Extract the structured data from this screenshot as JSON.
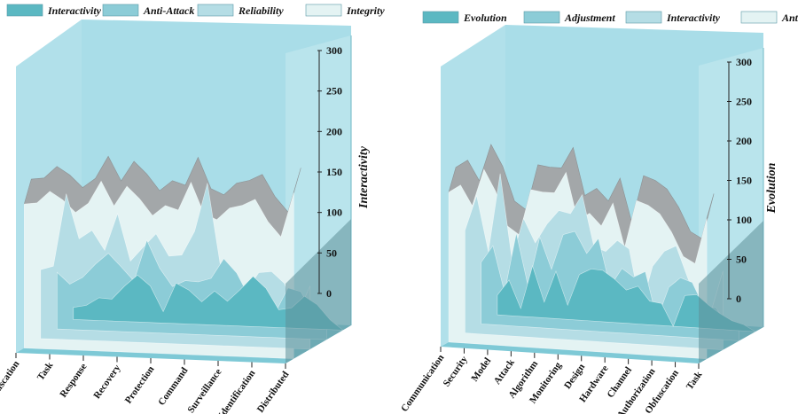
{
  "colors": {
    "wall": "#a9dde8",
    "wall_right": "#bfe6ee",
    "floor": "#7ec9d6",
    "series": [
      "#5bb8c2",
      "#8cccd7",
      "#b5dde5",
      "#e4f3f3"
    ],
    "top_band": "#a3a7a9"
  },
  "chart_data": [
    {
      "type": "area",
      "title": "",
      "legend": [
        "Interactivity",
        "Anti-Attack",
        "Reliability",
        "Integrity"
      ],
      "categories": [
        "Obfuscation",
        "Task",
        "Response",
        "Recovery",
        "Protection",
        "Command",
        "Surveillance",
        "Identification",
        "Distributed"
      ],
      "x_values": [
        0,
        1,
        2,
        3,
        4,
        5,
        6,
        7,
        8,
        9,
        10,
        11,
        12,
        13,
        14,
        15,
        16,
        17,
        18,
        19,
        20,
        21
      ],
      "series": [
        {
          "name": "Interactivity",
          "values": [
            15,
            18,
            28,
            27,
            44,
            58,
            45,
            14,
            50,
            42,
            28,
            42,
            30,
            45,
            62,
            48,
            22,
            25,
            40,
            30,
            12,
            0
          ]
        },
        {
          "name": "Anti-Attack",
          "values": [
            70,
            56,
            65,
            82,
            96,
            80,
            63,
            114,
            80,
            58,
            66,
            65,
            70,
            95,
            78,
            48,
            28,
            30,
            62,
            58,
            30,
            30
          ]
        },
        {
          "name": "Reliability",
          "values": [
            85,
            90,
            180,
            125,
            136,
            112,
            158,
            100,
            118,
            135,
            108,
            110,
            140,
            200,
            100,
            62,
            68,
            92,
            94,
            80,
            42,
            78
          ]
        },
        {
          "name": "Integrity",
          "values": [
            178,
            180,
            195,
            185,
            170,
            182,
            210,
            180,
            205,
            190,
            170,
            183,
            178,
            213,
            175,
            168,
            183,
            187,
            195,
            168,
            150,
            205
          ]
        }
      ],
      "ylim": [
        0,
        300
      ],
      "yticks": [
        0,
        50,
        100,
        150,
        200,
        250,
        300
      ],
      "ylabel": "Interactivity",
      "legend_position": "top-left"
    },
    {
      "type": "area",
      "title": "",
      "legend": [
        "Evolution",
        "Adjustment",
        "Interactivity",
        "Anti-Attack"
      ],
      "categories": [
        "Communication",
        "Security",
        "Model",
        "Attack",
        "Algorithm",
        "Monitoring",
        "Design",
        "Hardware",
        "Channel",
        "Authorization",
        "Obfuscation",
        "Task"
      ],
      "x_values": [
        0,
        1,
        2,
        3,
        4,
        5,
        6,
        7,
        8,
        9,
        10,
        11,
        12,
        13,
        14,
        15,
        16,
        17,
        18,
        19,
        20,
        21,
        22
      ],
      "series": [
        {
          "name": "Evolution",
          "values": [
            25,
            45,
            10,
            65,
            20,
            60,
            18,
            58,
            66,
            65,
            55,
            42,
            48,
            30,
            28,
            0,
            40,
            42,
            30,
            20,
            12,
            8,
            0
          ]
        },
        {
          "name": "Adjustment",
          "values": [
            78,
            100,
            42,
            118,
            52,
            115,
            75,
            120,
            125,
            98,
            118,
            58,
            82,
            72,
            80,
            20,
            62,
            75,
            70,
            40,
            40,
            20,
            20
          ]
        },
        {
          "name": "Interactivity",
          "values": [
            130,
            175,
            105,
            205,
            98,
            150,
            120,
            145,
            163,
            160,
            185,
            120,
            115,
            130,
            120,
            45,
            100,
            120,
            128,
            88,
            55,
            48,
            100
          ]
        },
        {
          "name": "Anti-Attack",
          "values": [
            190,
            200,
            175,
            222,
            195,
            152,
            142,
            200,
            198,
            198,
            225,
            165,
            175,
            160,
            190,
            135,
            195,
            190,
            180,
            158,
            128,
            120,
            178
          ]
        }
      ],
      "ylim": [
        0,
        300
      ],
      "yticks": [
        0,
        50,
        100,
        150,
        200,
        250,
        300
      ],
      "ylabel": "Evolution",
      "legend_position": "top"
    }
  ]
}
